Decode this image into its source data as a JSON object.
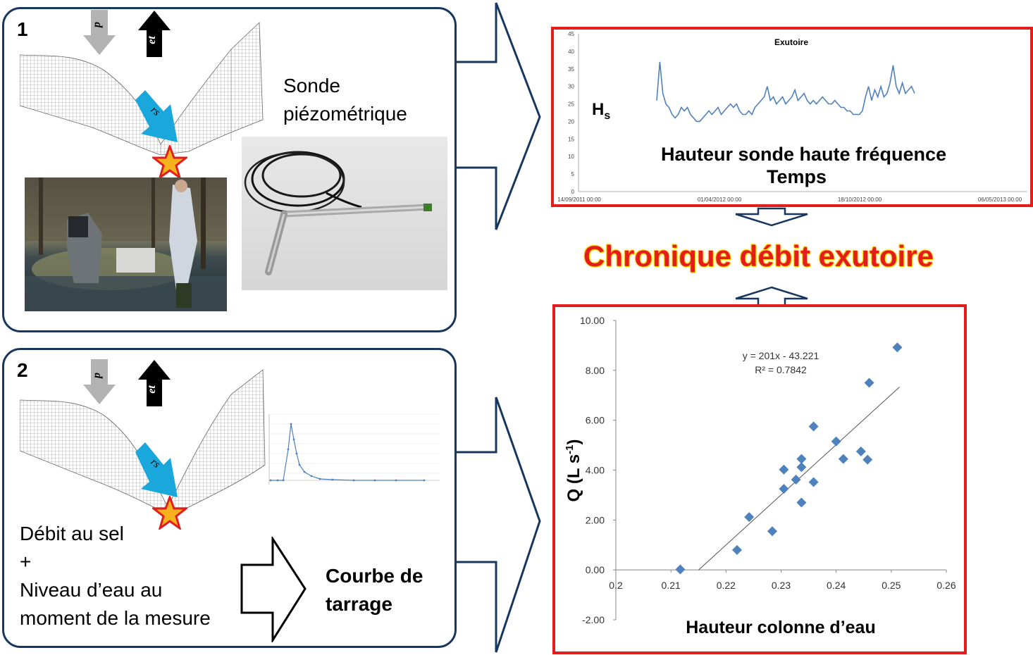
{
  "panel1": {
    "number": "1",
    "probe_label_line1": "Sonde",
    "probe_label_line2": "piézométrique",
    "arrow_p": "p",
    "arrow_et": "et",
    "arrow_rs": "rs"
  },
  "panel2": {
    "number": "2",
    "arrow_p": "p",
    "arrow_et": "et",
    "arrow_rs": "rs",
    "text_lines": [
      "Débit au sel",
      "+",
      "Niveau d’eau au",
      "moment de la mesure"
    ],
    "result_line1": "Courbe de",
    "result_line2": "tarrage"
  },
  "center_title": "Chronique débit exutoire",
  "colors": {
    "panel_border": "#17375e",
    "chart_border": "#e31c1c",
    "series": "#4f81bd",
    "arrow_blue": "#1aa7dc"
  },
  "chart_data": [
    {
      "type": "line",
      "title": "Exutoire",
      "ylabel": "Hs",
      "overlay_line1": "Hauteur sonde haute fréquence",
      "overlay_line2": "Temps",
      "ylim": [
        0,
        45
      ],
      "yticks": [
        "0",
        "5",
        "10",
        "15",
        "20",
        "25",
        "30",
        "35",
        "40",
        "45"
      ],
      "xticks": [
        "14/09/2011 00:00",
        "01/04/2012 00:00",
        "18/10/2012 00:00",
        "06/05/2013 00:00"
      ],
      "series": [
        {
          "values": [
            26,
            37,
            28,
            25,
            24,
            22,
            21,
            22,
            24,
            23,
            24,
            22,
            21,
            20,
            20,
            21,
            22,
            23,
            22,
            23,
            24,
            22,
            23,
            24,
            25,
            24,
            25,
            23,
            22,
            22,
            23,
            22,
            24,
            25,
            26,
            27,
            30,
            26,
            27,
            25,
            26,
            27,
            25,
            26,
            27,
            29,
            26,
            27,
            28,
            26,
            25,
            26,
            25,
            26,
            27,
            26,
            25,
            25,
            26,
            25,
            24,
            24,
            23,
            23,
            22,
            22,
            22,
            23,
            27,
            30,
            26,
            29,
            27,
            30,
            27,
            28,
            31,
            36,
            30,
            28,
            31,
            28,
            29,
            30,
            28
          ]
        }
      ]
    },
    {
      "type": "scatter",
      "xlabel": "Hauteur colonne d’eau",
      "ylabel": "Q (L s-1)",
      "equation": "y = 201x - 43.221",
      "r2": "R² = 0.7842",
      "xlim": [
        0.2,
        0.26
      ],
      "ylim": [
        -2,
        10
      ],
      "xticks": [
        "0.2",
        "0.21",
        "0.22",
        "0.23",
        "0.24",
        "0.25",
        "0.26"
      ],
      "yticks": [
        "-2.00",
        "0.00",
        "2.00",
        "4.00",
        "6.00",
        "8.00",
        "10.00"
      ],
      "x": [
        0.2117,
        0.222,
        0.2242,
        0.2284,
        0.2305,
        0.2305,
        0.2327,
        0.2337,
        0.2337,
        0.2337,
        0.2359,
        0.2359,
        0.24,
        0.2413,
        0.2445,
        0.2457,
        0.246,
        0.2511
      ],
      "y": [
        0.02,
        0.8,
        2.12,
        1.55,
        3.25,
        4.02,
        3.62,
        2.7,
        4.12,
        4.45,
        5.75,
        3.52,
        5.15,
        4.45,
        4.75,
        4.42,
        7.5,
        8.92
      ]
    }
  ]
}
